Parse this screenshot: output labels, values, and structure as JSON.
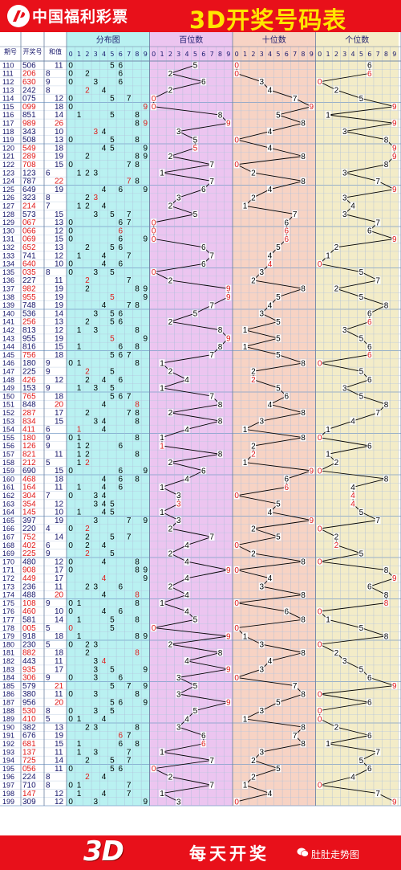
{
  "header": {
    "org": "中国福利彩票",
    "logo_icon": "welfare-lottery-logo-icon",
    "title": "3D开奖号码表"
  },
  "footer": {
    "brand": "3D",
    "slogan": "每天开奖",
    "watermark": "肚肚走势图",
    "watermark_icon": "wechat-icon"
  },
  "chart_data": {
    "type": "table",
    "columns": {
      "issue": "期号",
      "number": "开奖号",
      "sum": "和值",
      "dist": "分布图",
      "hundreds": "百位数",
      "tens": "十位数",
      "units": "个位数"
    },
    "digit_ticks": [
      "0",
      "1",
      "2",
      "3",
      "4",
      "5",
      "6",
      "7",
      "8",
      "9"
    ],
    "colors": {
      "banner": "#e8101a",
      "title": "#ffe600",
      "dist_bg": "#b9f1f1",
      "hundreds_bg": "#ecc5f0",
      "tens_bg": "#f7d3c4",
      "units_bg": "#f3ecc8",
      "line": "#000000",
      "highlight": "#e01818"
    },
    "start_issue": 110,
    "numbers": [
      "506",
      "206",
      "630",
      "242",
      "075",
      "099",
      "851",
      "989",
      "343",
      "508",
      "549",
      "289",
      "708",
      "123",
      "787",
      "649",
      "323",
      "214",
      "573",
      "067",
      "066",
      "069",
      "652",
      "741",
      "640",
      "035",
      "227",
      "982",
      "955",
      "748",
      "536",
      "256",
      "813",
      "955",
      "816",
      "756",
      "180",
      "225",
      "426",
      "153",
      "765",
      "848",
      "287",
      "834",
      "411",
      "180",
      "126",
      "821",
      "212",
      "690",
      "468",
      "164",
      "304",
      "354",
      "145",
      "397",
      "220",
      "752",
      "402",
      "225",
      "480",
      "908",
      "449",
      "236",
      "488",
      "108",
      "460",
      "581",
      "005",
      "918",
      "230",
      "882",
      "443",
      "935",
      "306",
      "579",
      "380",
      "956",
      "530",
      "410",
      "382",
      "676",
      "681",
      "137",
      "725",
      "056",
      "224",
      "710",
      "147",
      "309"
    ],
    "sums": [
      11,
      8,
      9,
      8,
      12,
      18,
      14,
      26,
      10,
      13,
      18,
      19,
      15,
      6,
      22,
      19,
      8,
      7,
      15,
      13,
      12,
      15,
      13,
      12,
      10,
      8,
      11,
      19,
      19,
      19,
      14,
      13,
      12,
      19,
      15,
      18,
      9,
      9,
      12,
      9,
      18,
      20,
      17,
      15,
      6,
      9,
      9,
      11,
      5,
      15,
      18,
      11,
      7,
      12,
      10,
      19,
      4,
      14,
      6,
      9,
      12,
      17,
      17,
      11,
      20,
      9,
      10,
      14,
      5,
      18,
      5,
      18,
      11,
      17,
      9,
      21,
      11,
      20,
      8,
      5,
      13,
      19,
      15,
      11,
      14,
      11,
      8,
      8,
      12,
      12
    ]
  }
}
